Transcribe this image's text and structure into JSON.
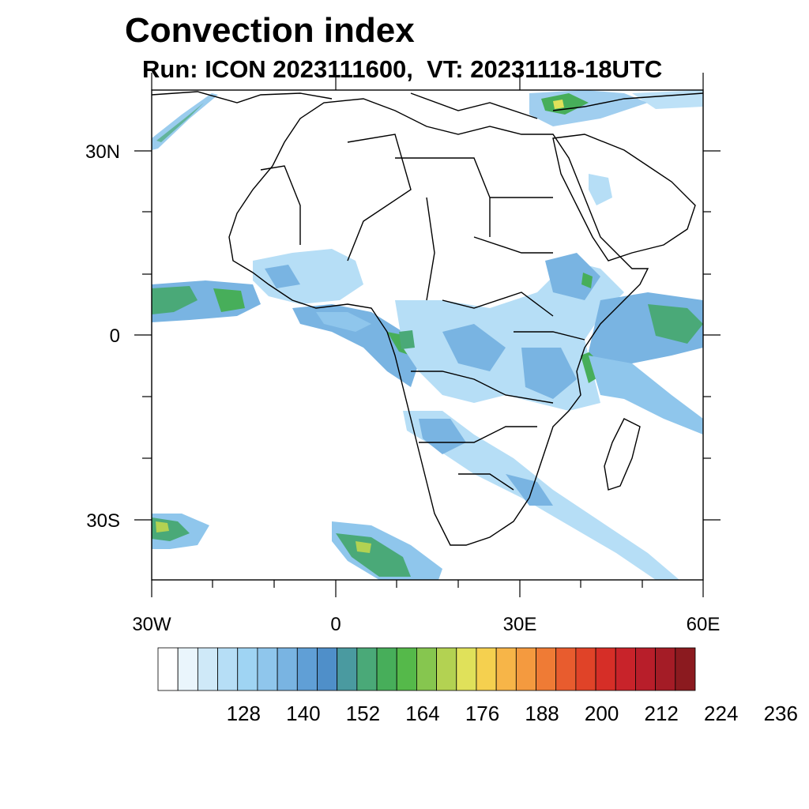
{
  "title": "Convection index",
  "subtitle": "Run: ICON 2023111600,  VT: 20231118-18UTC",
  "map": {
    "lon_range": [
      -30,
      60
    ],
    "lat_range": [
      -40,
      40
    ],
    "lon_labels": [
      "30W",
      "0",
      "30E",
      "60E"
    ],
    "lat_labels": [
      "30N",
      "0",
      "30S"
    ],
    "region": "Africa and Arabian Peninsula"
  },
  "colorbar": {
    "labels": [
      "128",
      "140",
      "152",
      "164",
      "176",
      "188",
      "200",
      "212",
      "224",
      "236"
    ],
    "colors": [
      "#ffffff",
      "#eaf5fc",
      "#cfe9f8",
      "#b6def6",
      "#9fd4f3",
      "#8fc6ec",
      "#79b4e2",
      "#609fd6",
      "#4f8fc9",
      "#4a9aa0",
      "#4aa978",
      "#47ae5a",
      "#55b94a",
      "#86c64f",
      "#b3d252",
      "#e0e15a",
      "#f5d04f",
      "#f7b548",
      "#f49a3f",
      "#ef7b35",
      "#e85c2e",
      "#e04328",
      "#d62e27",
      "#c8232a",
      "#b81e2a",
      "#a41c26",
      "#8b1a1f"
    ]
  }
}
